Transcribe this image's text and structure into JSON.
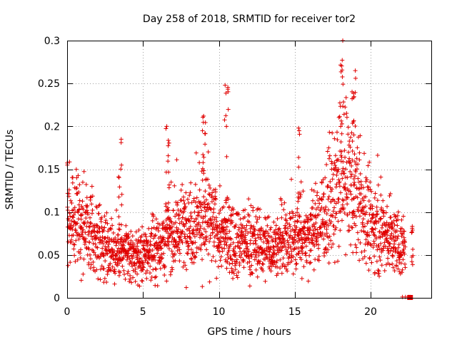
{
  "chart_data": {
    "type": "scatter",
    "title": "Day 258 of 2018, SRMTID for receiver tor2",
    "xlabel": "GPS time / hours",
    "ylabel": "SRMTID / TECUs",
    "xlim": [
      0,
      24
    ],
    "ylim": [
      0,
      0.3
    ],
    "xticks": [
      0,
      5,
      10,
      15,
      20
    ],
    "xtick_labels": [
      "0",
      "5",
      "10",
      "15",
      "20"
    ],
    "yticks": [
      0,
      0.05,
      0.1,
      0.15,
      0.2,
      0.25,
      0.3
    ],
    "ytick_labels": [
      "0",
      "0.05",
      "0.1",
      "0.15",
      "0.2",
      "0.25",
      "0.3"
    ],
    "grid": true,
    "series_color": "#e00000",
    "profile": {
      "description": "approximate typical SRMTID level vs hour; dense scatter of ~2400 points with spread around this level",
      "hours": [
        0,
        0.5,
        1,
        1.5,
        2,
        2.5,
        3,
        3.5,
        4,
        4.5,
        5,
        5.5,
        6,
        6.5,
        7,
        7.5,
        8,
        8.5,
        9,
        9.5,
        10,
        10.5,
        11,
        11.5,
        12,
        12.5,
        13,
        13.5,
        14,
        14.5,
        15,
        15.5,
        16,
        16.5,
        17,
        17.5,
        18,
        18.5,
        19,
        19.5,
        20,
        20.5,
        21,
        21.5,
        22,
        22.5
      ],
      "level": [
        0.095,
        0.09,
        0.085,
        0.075,
        0.07,
        0.06,
        0.055,
        0.052,
        0.05,
        0.048,
        0.05,
        0.055,
        0.062,
        0.07,
        0.075,
        0.08,
        0.085,
        0.09,
        0.095,
        0.085,
        0.075,
        0.07,
        0.068,
        0.065,
        0.065,
        0.062,
        0.06,
        0.06,
        0.062,
        0.065,
        0.07,
        0.072,
        0.075,
        0.085,
        0.1,
        0.11,
        0.13,
        0.14,
        0.12,
        0.1,
        0.085,
        0.08,
        0.075,
        0.065,
        0.06,
        0.06
      ]
    },
    "spikes": [
      {
        "hour": 10.5,
        "max": 0.248
      },
      {
        "hour": 18.1,
        "max": 0.3
      },
      {
        "hour": 18.9,
        "max": 0.265
      },
      {
        "hour": 3.5,
        "max": 0.185
      },
      {
        "hour": 6.6,
        "max": 0.2
      },
      {
        "hour": 9.0,
        "max": 0.212
      },
      {
        "hour": 15.3,
        "max": 0.198
      }
    ],
    "zero_points_hours": [
      22.1,
      22.3,
      22.5,
      22.6
    ],
    "data_gap_hours": [
      22.3,
      22.7
    ]
  }
}
